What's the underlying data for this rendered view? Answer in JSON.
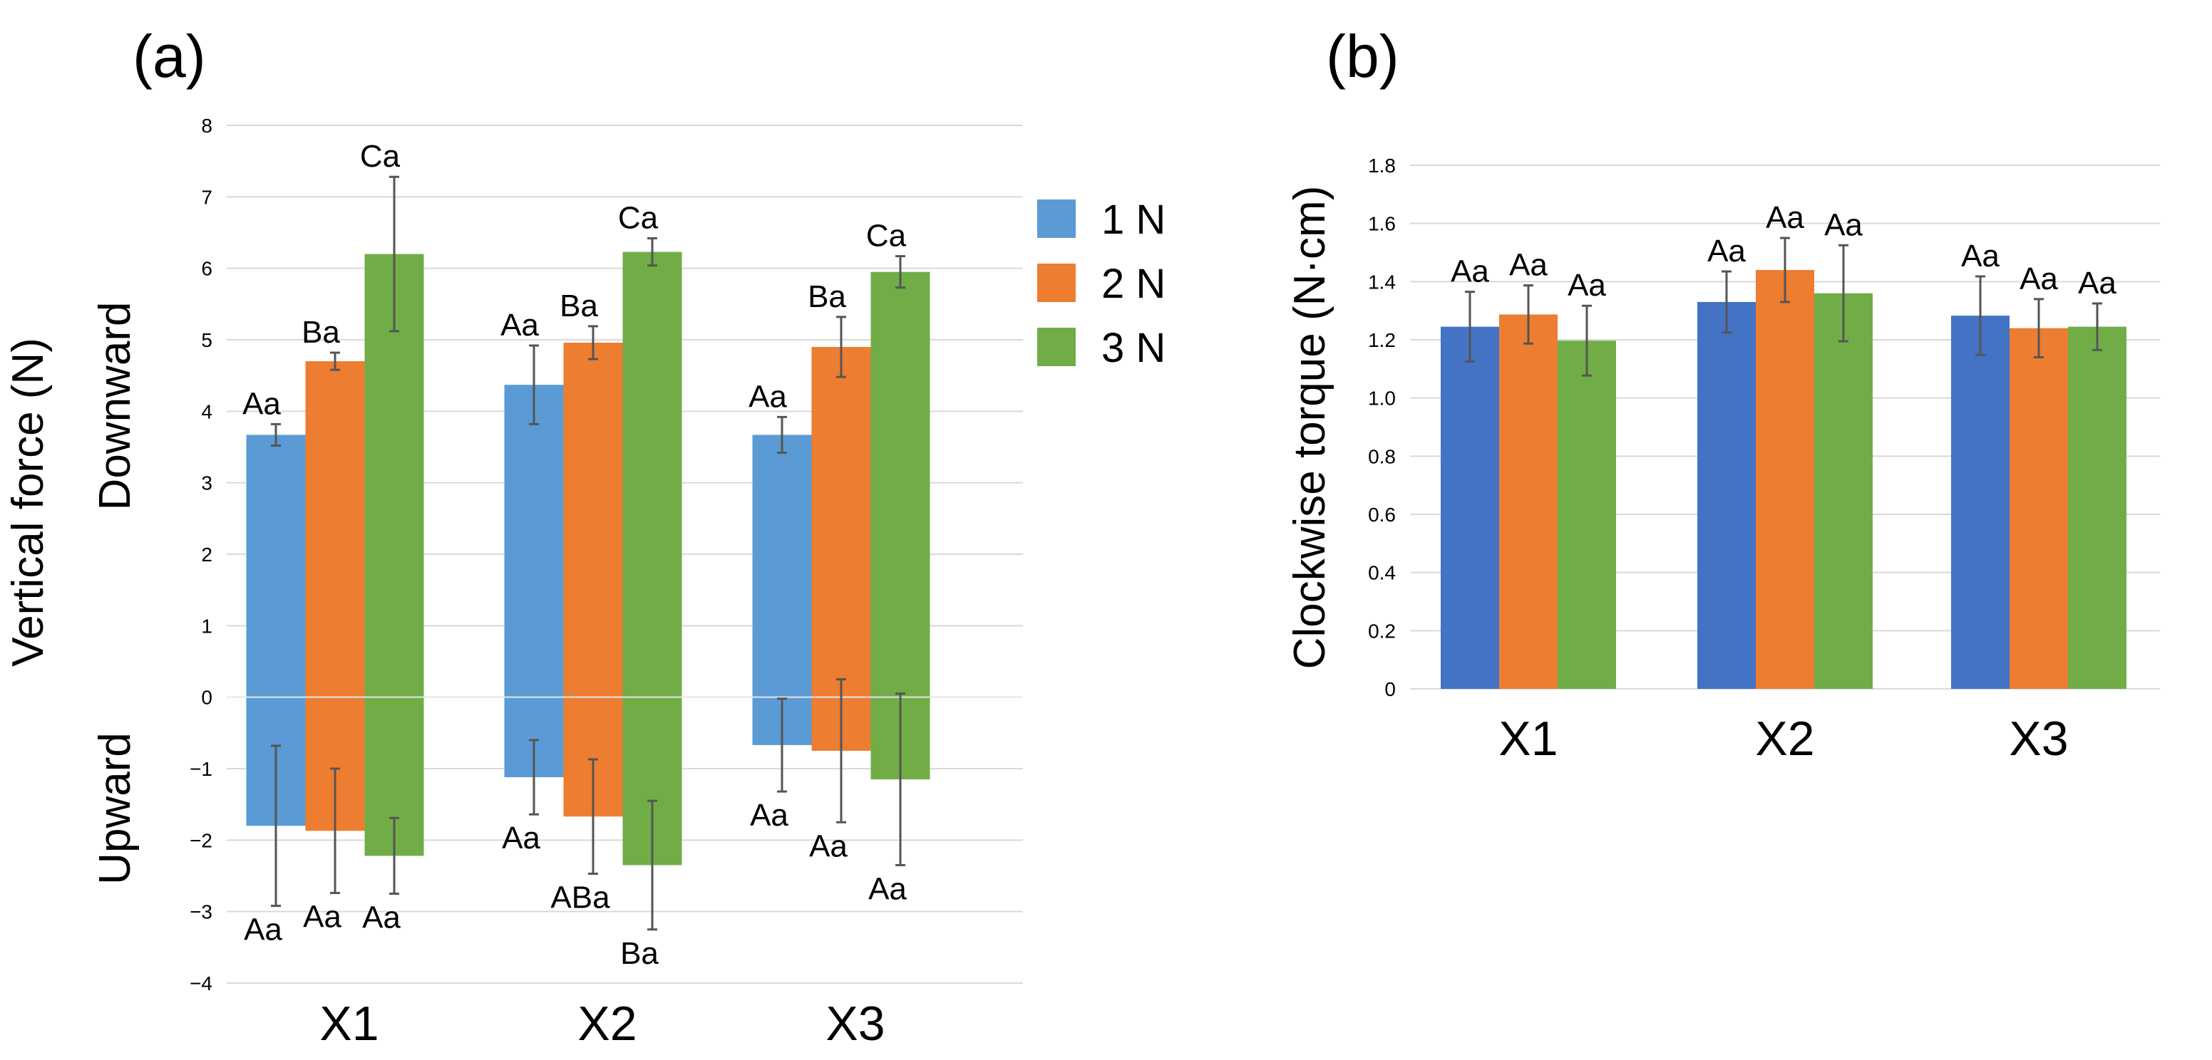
{
  "chart_data": [
    {
      "panel_label": "(a)",
      "type": "bar",
      "ylabel": "Vertical force (N)",
      "direction_labels": {
        "positive": "Downward",
        "negative": "Upward"
      },
      "ylim": [
        -4,
        8
      ],
      "yticks": [
        "8",
        "7",
        "6",
        "5",
        "4",
        "3",
        "2",
        "1",
        "0",
        "−1",
        "−2",
        "−3",
        "−4"
      ],
      "ytick_values": [
        8,
        7,
        6,
        5,
        4,
        3,
        2,
        1,
        0,
        -1,
        -2,
        -3,
        -4
      ],
      "categories": [
        "X1",
        "X2",
        "X3"
      ],
      "grid": true,
      "legend_position": "right",
      "series": [
        {
          "name": "1 N",
          "color": "#5b9bd5",
          "pos_values": [
            3.67,
            4.37,
            3.67
          ],
          "pos_err": [
            0.15,
            0.55,
            0.25
          ],
          "neg_values": [
            -1.8,
            -1.12,
            -0.67
          ],
          "neg_err": [
            1.12,
            0.52,
            0.65
          ],
          "pos_labels": [
            "Aa",
            "Aa",
            "Aa"
          ],
          "neg_labels": [
            "Aa",
            "Aa",
            "Aa"
          ]
        },
        {
          "name": "2 N",
          "color": "#ed7d31",
          "pos_values": [
            4.7,
            4.96,
            4.9
          ],
          "pos_err": [
            0.12,
            0.23,
            0.42
          ],
          "neg_values": [
            -1.87,
            -1.67,
            -0.75
          ],
          "neg_err": [
            0.87,
            0.8,
            1.0
          ],
          "pos_labels": [
            "Ba",
            "Ba",
            "Ba"
          ],
          "neg_labels": [
            "Aa",
            "ABa",
            "Aa"
          ]
        },
        {
          "name": "3 N",
          "color": "#70ad47",
          "pos_values": [
            6.2,
            6.23,
            5.95
          ],
          "pos_err": [
            1.08,
            0.19,
            0.22
          ],
          "neg_values": [
            -2.22,
            -2.35,
            -1.15
          ],
          "neg_err": [
            0.53,
            0.9,
            1.2
          ],
          "pos_labels": [
            "Ca",
            "Ca",
            "Ca"
          ],
          "neg_labels": [
            "Aa",
            "Ba",
            "Aa"
          ]
        }
      ]
    },
    {
      "panel_label": "(b)",
      "type": "bar",
      "ylabel": "Clockwise torque (N·cm)",
      "ylim": [
        0,
        1.8
      ],
      "yticks": [
        "1.8",
        "1.6",
        "1.4",
        "1.2",
        "1.0",
        "0.8",
        "0.6",
        "0.4",
        "0.2",
        "0"
      ],
      "ytick_values": [
        1.8,
        1.6,
        1.4,
        1.2,
        1.0,
        0.8,
        0.6,
        0.4,
        0.2,
        0
      ],
      "categories": [
        "X1",
        "X2",
        "X3"
      ],
      "grid": true,
      "series": [
        {
          "name": "1 N",
          "color": "#4472c4",
          "values": [
            1.245,
            1.33,
            1.283
          ],
          "err": [
            0.12,
            0.105,
            0.135
          ],
          "labels": [
            "Aa",
            "Aa",
            "Aa"
          ]
        },
        {
          "name": "2 N",
          "color": "#ed7d31",
          "values": [
            1.287,
            1.44,
            1.24
          ],
          "err": [
            0.1,
            0.11,
            0.1
          ],
          "labels": [
            "Aa",
            "Aa",
            "Aa"
          ]
        },
        {
          "name": "3 N",
          "color": "#70ad47",
          "values": [
            1.197,
            1.36,
            1.245
          ],
          "err": [
            0.12,
            0.165,
            0.08
          ],
          "labels": [
            "Aa",
            "Aa",
            "Aa"
          ]
        }
      ]
    }
  ]
}
